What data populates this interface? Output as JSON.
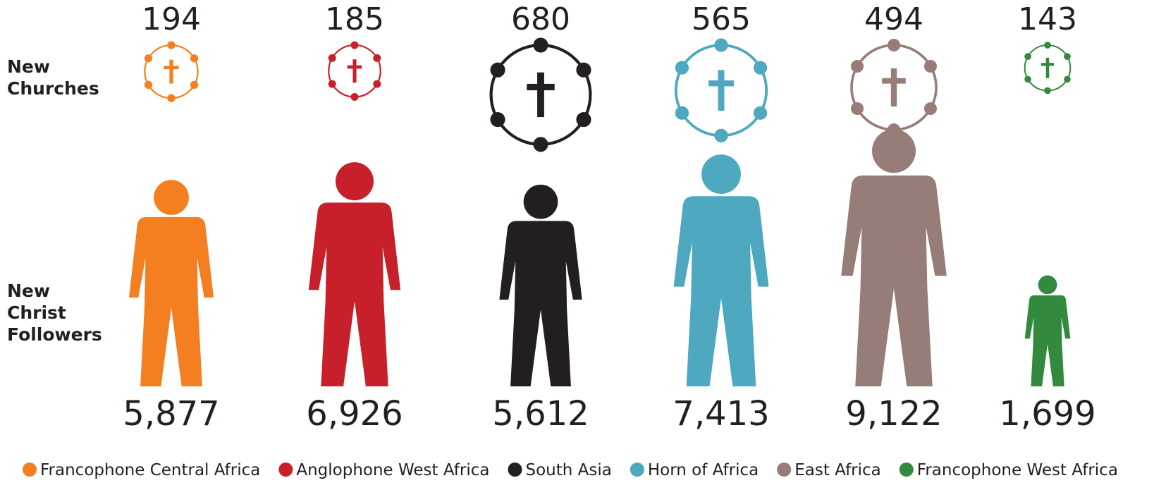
{
  "chart_data": {
    "type": "pictogram",
    "categories": [
      "Francophone Central Africa",
      "Anglophone West Africa",
      "South Asia",
      "Horn of Africa",
      "East Africa",
      "Francophone West Africa"
    ],
    "colors": [
      "#f47f20",
      "#c8202a",
      "#231f20",
      "#4ea8c0",
      "#967d77",
      "#338a3e"
    ],
    "series": [
      {
        "name": "New Churches",
        "values": [
          194,
          185,
          680,
          565,
          494,
          143
        ]
      },
      {
        "name": "New Christ Followers",
        "values": [
          5877,
          6926,
          5612,
          7413,
          9122,
          1699
        ],
        "value_labels": [
          "5,877",
          "6,926",
          "5,612",
          "7,413",
          "9,122",
          "1,699"
        ]
      }
    ]
  }
}
